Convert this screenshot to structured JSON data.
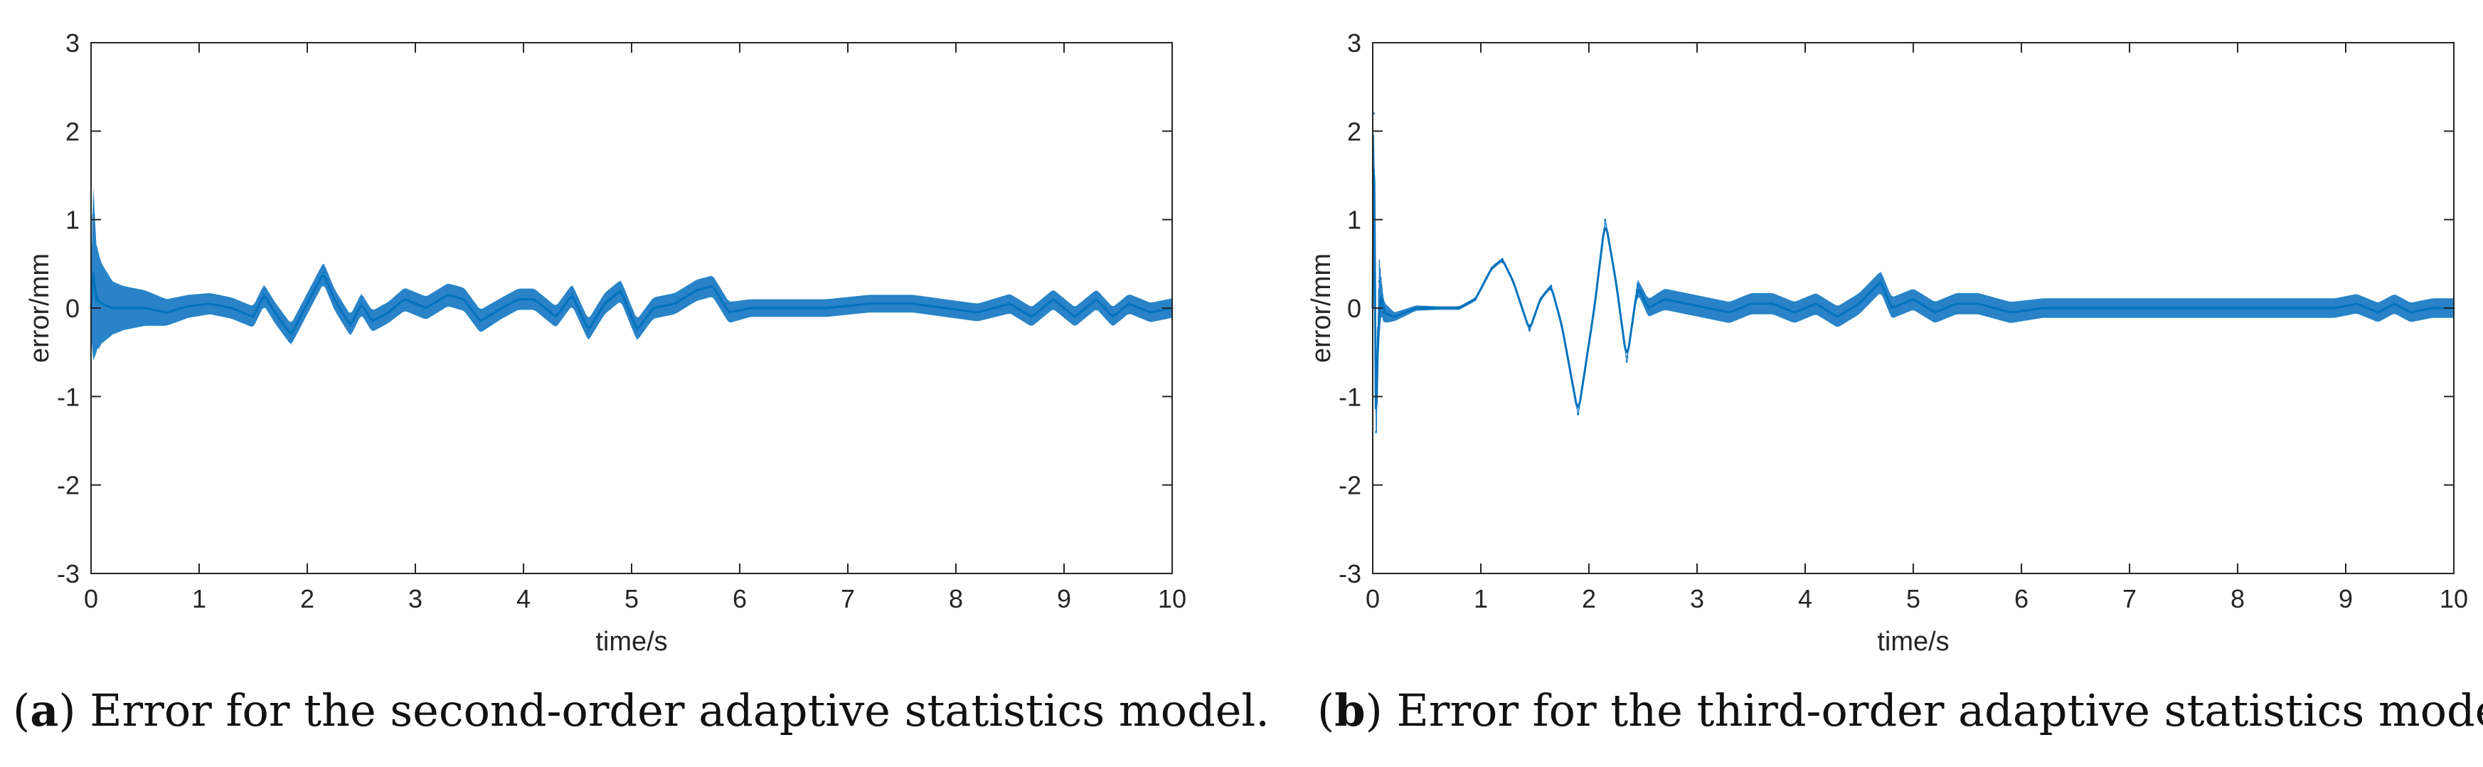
{
  "colors": {
    "line": "#0072BD",
    "axis": "#262626",
    "background": "#ffffff"
  },
  "chart_data": [
    {
      "type": "line",
      "panel": "a",
      "caption_letter": "a",
      "caption_text": "Error for the second-order adaptive statistics model.",
      "xlabel": "time/s",
      "ylabel": "error/mm",
      "xlim": [
        0,
        10
      ],
      "ylim": [
        -3,
        3
      ],
      "xticks": [
        "0",
        "1",
        "2",
        "3",
        "4",
        "5",
        "6",
        "7",
        "8",
        "9",
        "10"
      ],
      "yticks": [
        "3",
        "2",
        "1",
        "0",
        "-1",
        "-2",
        "-3"
      ],
      "series": [
        {
          "name": "error",
          "x": [
            0,
            0.02,
            0.05,
            0.1,
            0.2,
            0.3,
            0.5,
            0.7,
            0.9,
            1.1,
            1.3,
            1.5,
            1.6,
            1.7,
            1.85,
            2.0,
            2.15,
            2.25,
            2.4,
            2.5,
            2.6,
            2.75,
            2.9,
            3.1,
            3.3,
            3.45,
            3.6,
            3.8,
            3.95,
            4.1,
            4.3,
            4.45,
            4.6,
            4.75,
            4.9,
            5.05,
            5.2,
            5.4,
            5.6,
            5.75,
            5.9,
            6.1,
            6.4,
            6.8,
            7.2,
            7.6,
            7.9,
            8.2,
            8.5,
            8.7,
            8.9,
            9.1,
            9.3,
            9.45,
            9.6,
            9.8,
            10.0
          ],
          "values": [
            0,
            0.4,
            0.1,
            0.05,
            0.0,
            0.0,
            0.0,
            -0.05,
            0.02,
            0.05,
            0.0,
            -0.1,
            0.15,
            -0.05,
            -0.3,
            0.05,
            0.4,
            0.1,
            -0.2,
            0.05,
            -0.15,
            -0.05,
            0.1,
            0.0,
            0.15,
            0.1,
            -0.15,
            0.0,
            0.1,
            0.1,
            -0.1,
            0.15,
            -0.25,
            0.05,
            0.2,
            -0.25,
            0.0,
            0.05,
            0.2,
            0.25,
            -0.05,
            0.0,
            0.0,
            0.0,
            0.05,
            0.05,
            0.0,
            -0.05,
            0.05,
            -0.1,
            0.1,
            -0.1,
            0.1,
            -0.1,
            0.05,
            -0.05,
            0.0
          ],
          "band_halfwidth": [
            0.3,
            1.0,
            0.6,
            0.45,
            0.3,
            0.25,
            0.2,
            0.15,
            0.13,
            0.12,
            0.12,
            0.12,
            0.12,
            0.12,
            0.12,
            0.12,
            0.12,
            0.12,
            0.12,
            0.12,
            0.12,
            0.12,
            0.13,
            0.13,
            0.13,
            0.13,
            0.13,
            0.12,
            0.12,
            0.12,
            0.12,
            0.12,
            0.12,
            0.12,
            0.12,
            0.12,
            0.12,
            0.12,
            0.12,
            0.12,
            0.12,
            0.1,
            0.1,
            0.1,
            0.1,
            0.1,
            0.1,
            0.1,
            0.11,
            0.11,
            0.11,
            0.11,
            0.11,
            0.11,
            0.11,
            0.11,
            0.11
          ]
        }
      ]
    },
    {
      "type": "line",
      "panel": "b",
      "caption_letter": "b",
      "caption_text": "Error for the third-order adaptive statistics model.",
      "xlabel": "time/s",
      "ylabel": "error/mm",
      "xlim": [
        0,
        10
      ],
      "ylim": [
        -3,
        3
      ],
      "xticks": [
        "0",
        "1",
        "2",
        "3",
        "4",
        "5",
        "6",
        "7",
        "8",
        "9",
        "10"
      ],
      "yticks": [
        "3",
        "2",
        "1",
        "0",
        "-1",
        "-2",
        "-3"
      ],
      "series": [
        {
          "name": "error",
          "x": [
            0,
            0.01,
            0.03,
            0.06,
            0.1,
            0.2,
            0.4,
            0.6,
            0.8,
            0.95,
            1.1,
            1.2,
            1.3,
            1.45,
            1.55,
            1.65,
            1.75,
            1.9,
            2.05,
            2.15,
            2.25,
            2.35,
            2.45,
            2.55,
            2.7,
            2.9,
            3.1,
            3.3,
            3.5,
            3.7,
            3.9,
            4.1,
            4.3,
            4.5,
            4.7,
            4.8,
            5.0,
            5.2,
            5.4,
            5.6,
            5.9,
            6.2,
            6.6,
            7.0,
            7.4,
            7.8,
            8.2,
            8.6,
            8.9,
            9.1,
            9.3,
            9.45,
            9.6,
            9.8,
            10.0
          ],
          "values": [
            0,
            2.2,
            -1.4,
            0.3,
            -0.05,
            -0.1,
            0.0,
            0.0,
            0.0,
            0.1,
            0.45,
            0.55,
            0.3,
            -0.25,
            0.1,
            0.25,
            -0.2,
            -1.2,
            0.0,
            1.0,
            0.3,
            -0.6,
            0.25,
            0.0,
            0.1,
            0.05,
            0.0,
            -0.05,
            0.05,
            0.05,
            -0.05,
            0.05,
            -0.1,
            0.05,
            0.3,
            0.0,
            0.1,
            -0.05,
            0.05,
            0.05,
            -0.05,
            0.0,
            0.0,
            0.0,
            0.0,
            0.0,
            0.0,
            0.0,
            0.0,
            0.05,
            -0.05,
            0.05,
            -0.05,
            0.0,
            0.0
          ],
          "band_halfwidth": [
            0.3,
            0.3,
            0.3,
            0.3,
            0.12,
            0.05,
            0.03,
            0.02,
            0.02,
            0.02,
            0.02,
            0.02,
            0.02,
            0.02,
            0.02,
            0.02,
            0.02,
            0.02,
            0.02,
            0.02,
            0.02,
            0.02,
            0.08,
            0.1,
            0.12,
            0.12,
            0.12,
            0.12,
            0.12,
            0.12,
            0.12,
            0.12,
            0.12,
            0.12,
            0.12,
            0.12,
            0.12,
            0.12,
            0.12,
            0.12,
            0.12,
            0.11,
            0.11,
            0.11,
            0.11,
            0.11,
            0.11,
            0.11,
            0.11,
            0.11,
            0.11,
            0.11,
            0.11,
            0.11,
            0.11
          ]
        }
      ]
    }
  ]
}
